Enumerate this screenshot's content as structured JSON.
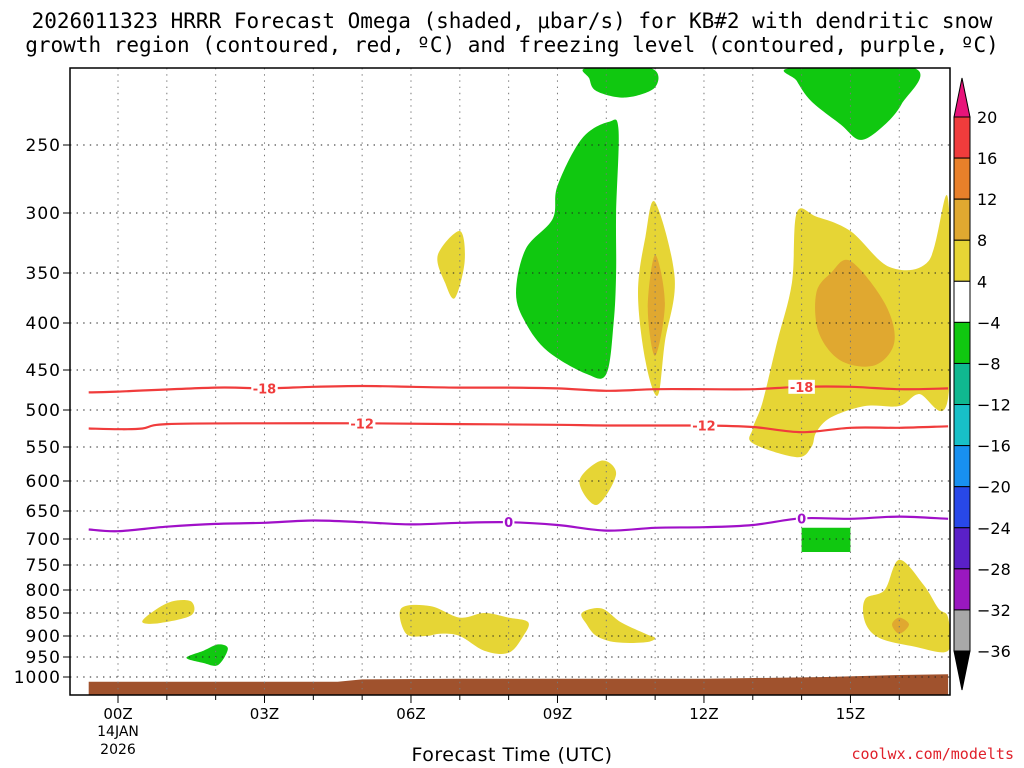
{
  "chart_data": {
    "type": "heatmap",
    "title_line1": "2026011323 HRRR Forecast Omega (shaded, μbar/s) for KB#2 with dendritic snow",
    "title_line2": "growth region (contoured, red, ºC) and freezing level (contoured, purple, ºC)",
    "xlabel": "Forecast Time (UTC)",
    "ylabel": "",
    "xlim": [
      -0.6,
      17
    ],
    "ylim_hPa": [
      1020,
      190
    ],
    "x_ticks": [
      {
        "value": 0,
        "label": "00Z"
      },
      {
        "value": 3,
        "label": "03Z"
      },
      {
        "value": 6,
        "label": "06Z"
      },
      {
        "value": 9,
        "label": "09Z"
      },
      {
        "value": 12,
        "label": "12Z"
      },
      {
        "value": 15,
        "label": "15Z"
      }
    ],
    "date_label_line1": "14JAN",
    "date_label_line2": "2026",
    "y_ticks": [
      250,
      300,
      350,
      400,
      450,
      500,
      550,
      600,
      650,
      700,
      750,
      800,
      850,
      900,
      950,
      1000
    ],
    "colorbar": {
      "labels": [
        20,
        16,
        12,
        8,
        4,
        -4,
        -8,
        -12,
        -16,
        -20,
        -24,
        -28,
        -32,
        -36
      ],
      "bins": [
        {
          "from": 20,
          "to": 99,
          "color": "#e8147a"
        },
        {
          "from": 16,
          "to": 20,
          "color": "#f03c3c"
        },
        {
          "from": 12,
          "to": 16,
          "color": "#e8802a"
        },
        {
          "from": 8,
          "to": 12,
          "color": "#e0a830"
        },
        {
          "from": 4,
          "to": 8,
          "color": "#e6d535"
        },
        {
          "from": -4,
          "to": 4,
          "color": "#ffffff"
        },
        {
          "from": -8,
          "to": -4,
          "color": "#10c810"
        },
        {
          "from": -12,
          "to": -8,
          "color": "#10b890"
        },
        {
          "from": -16,
          "to": -12,
          "color": "#18c0c8"
        },
        {
          "from": -20,
          "to": -16,
          "color": "#1890f0"
        },
        {
          "from": -24,
          "to": -20,
          "color": "#2848e8"
        },
        {
          "from": -28,
          "to": -24,
          "color": "#5a20c8"
        },
        {
          "from": -32,
          "to": -28,
          "color": "#9a18c0"
        },
        {
          "from": -36,
          "to": -32,
          "color": "#a8a8a8"
        },
        {
          "from": -99,
          "to": -36,
          "color": "#000000"
        }
      ]
    },
    "omega_regions": [
      {
        "name": "green-top-center",
        "level": -4,
        "color": "#10c810",
        "points": [
          [
            9.6,
            190
          ],
          [
            10.9,
            190
          ],
          [
            11.0,
            205
          ],
          [
            10.4,
            213
          ],
          [
            9.8,
            208
          ],
          [
            9.65,
            198
          ]
        ]
      },
      {
        "name": "green-top-right",
        "level": -4,
        "color": "#10c810",
        "points": [
          [
            13.8,
            190
          ],
          [
            16.3,
            190
          ],
          [
            16.05,
            218
          ],
          [
            15.65,
            236
          ],
          [
            15.2,
            246
          ],
          [
            14.8,
            234
          ],
          [
            14.2,
            216
          ],
          [
            13.9,
            200
          ]
        ]
      },
      {
        "name": "green-upper-mid",
        "level": -4,
        "color": "#10c810",
        "points": [
          [
            10.05,
            232
          ],
          [
            10.25,
            238
          ],
          [
            10.2,
            300
          ],
          [
            10.2,
            350
          ],
          [
            10.15,
            400
          ],
          [
            10.0,
            455
          ],
          [
            9.6,
            455
          ],
          [
            8.8,
            430
          ],
          [
            8.35,
            400
          ],
          [
            8.15,
            370
          ],
          [
            8.35,
            330
          ],
          [
            8.9,
            305
          ],
          [
            9.0,
            280
          ],
          [
            9.5,
            245
          ]
        ]
      },
      {
        "name": "yellow-small-upper",
        "level": 4,
        "color": "#e6d535",
        "points": [
          [
            7.0,
            315
          ],
          [
            7.1,
            340
          ],
          [
            6.9,
            375
          ],
          [
            6.7,
            360
          ],
          [
            6.55,
            335
          ]
        ]
      },
      {
        "name": "yellow-spike",
        "level": 4,
        "color": "#e6d535",
        "points": [
          [
            11.0,
            292
          ],
          [
            11.4,
            355
          ],
          [
            11.2,
            420
          ],
          [
            11.05,
            482
          ],
          [
            10.8,
            440
          ],
          [
            10.65,
            370
          ],
          [
            10.8,
            320
          ]
        ]
      },
      {
        "name": "orange-spike",
        "level": 8,
        "color": "#e0a830",
        "points": [
          [
            11.0,
            335
          ],
          [
            11.2,
            380
          ],
          [
            11.0,
            435
          ],
          [
            10.85,
            385
          ]
        ]
      },
      {
        "name": "yellow-right-large",
        "level": 4,
        "color": "#e6d535",
        "points": [
          [
            17.0,
            290
          ],
          [
            17.0,
            485
          ],
          [
            16.4,
            480
          ],
          [
            16.0,
            495
          ],
          [
            15.3,
            495
          ],
          [
            14.6,
            510
          ],
          [
            14.3,
            530
          ],
          [
            14.2,
            550
          ],
          [
            13.9,
            565
          ],
          [
            13.0,
            545
          ],
          [
            13.0,
            525
          ],
          [
            13.2,
            490
          ],
          [
            13.5,
            420
          ],
          [
            13.8,
            360
          ],
          [
            13.9,
            300
          ],
          [
            14.3,
            303
          ],
          [
            15.0,
            315
          ],
          [
            15.8,
            345
          ],
          [
            16.6,
            340
          ]
        ]
      },
      {
        "name": "orange-right",
        "level": 8,
        "color": "#e0a830",
        "points": [
          [
            15.0,
            340
          ],
          [
            15.7,
            380
          ],
          [
            15.9,
            420
          ],
          [
            15.5,
            445
          ],
          [
            14.8,
            440
          ],
          [
            14.35,
            410
          ],
          [
            14.3,
            370
          ],
          [
            14.6,
            350
          ]
        ]
      },
      {
        "name": "yellow-small-600",
        "level": 4,
        "color": "#e6d535",
        "points": [
          [
            9.9,
            570
          ],
          [
            10.2,
            590
          ],
          [
            9.8,
            640
          ],
          [
            9.45,
            600
          ]
        ]
      },
      {
        "name": "green-box-700",
        "level": -4,
        "color": "#10c810",
        "points": [
          [
            14.0,
            680
          ],
          [
            15.0,
            680
          ],
          [
            15.0,
            725
          ],
          [
            14.0,
            725
          ]
        ]
      },
      {
        "name": "yellow-850-left",
        "level": 4,
        "color": "#e6d535",
        "points": [
          [
            1.5,
            825
          ],
          [
            1.5,
            855
          ],
          [
            0.85,
            872
          ],
          [
            0.5,
            870
          ],
          [
            0.7,
            848
          ],
          [
            1.1,
            825
          ]
        ]
      },
      {
        "name": "yellow-880-wide",
        "level": 4,
        "color": "#e6d535",
        "points": [
          [
            5.8,
            840
          ],
          [
            6.4,
            835
          ],
          [
            7.0,
            860
          ],
          [
            7.5,
            850
          ],
          [
            8.0,
            860
          ],
          [
            8.4,
            870
          ],
          [
            8.3,
            900
          ],
          [
            8.0,
            940
          ],
          [
            7.5,
            935
          ],
          [
            7.0,
            900
          ],
          [
            6.6,
            895
          ],
          [
            6.3,
            900
          ],
          [
            5.9,
            895
          ]
        ]
      },
      {
        "name": "yellow-880-mid",
        "level": 4,
        "color": "#e6d535",
        "points": [
          [
            9.5,
            850
          ],
          [
            9.9,
            840
          ],
          [
            10.3,
            870
          ],
          [
            10.8,
            895
          ],
          [
            11.0,
            905
          ],
          [
            10.8,
            915
          ],
          [
            10.2,
            915
          ],
          [
            9.8,
            900
          ],
          [
            9.6,
            875
          ]
        ]
      },
      {
        "name": "yellow-right-lower",
        "level": 4,
        "color": "#e6d535",
        "points": [
          [
            16.0,
            740
          ],
          [
            16.5,
            790
          ],
          [
            16.8,
            840
          ],
          [
            17.0,
            860
          ],
          [
            17.0,
            935
          ],
          [
            16.3,
            925
          ],
          [
            15.6,
            905
          ],
          [
            15.3,
            870
          ],
          [
            15.3,
            820
          ],
          [
            15.7,
            800
          ]
        ]
      },
      {
        "name": "orange-dot-right",
        "level": 8,
        "color": "#e0a830",
        "points": [
          [
            16.0,
            860
          ],
          [
            16.2,
            875
          ],
          [
            16.0,
            895
          ],
          [
            15.85,
            875
          ]
        ]
      },
      {
        "name": "green-950-left",
        "level": -4,
        "color": "#10c810",
        "points": [
          [
            2.05,
            920
          ],
          [
            2.25,
            930
          ],
          [
            2.05,
            970
          ],
          [
            1.75,
            965
          ],
          [
            1.4,
            952
          ],
          [
            1.75,
            935
          ]
        ]
      }
    ],
    "ground": {
      "color": "#a0522d",
      "points": [
        [
          -0.6,
          1030
        ],
        [
          -0.6,
          1008
        ],
        [
          2,
          1008
        ],
        [
          4.5,
          1008
        ],
        [
          5.0,
          1004
        ],
        [
          7,
          1003
        ],
        [
          12,
          1003
        ],
        [
          14.5,
          1000
        ],
        [
          16,
          995
        ],
        [
          17,
          993
        ],
        [
          17,
          1030
        ]
      ]
    },
    "contours_dgz": {
      "color": "#f03c3c",
      "lines": [
        {
          "value": -18,
          "label": "-18",
          "label_at": [
            3.0,
            14.0
          ],
          "points": [
            [
              -0.6,
              478
            ],
            [
              0,
              477
            ],
            [
              2,
              472
            ],
            [
              3,
              473
            ],
            [
              4,
              471
            ],
            [
              5,
              470
            ],
            [
              6,
              471
            ],
            [
              7,
              472
            ],
            [
              8,
              472
            ],
            [
              9,
              473
            ],
            [
              10,
              476
            ],
            [
              11,
              474
            ],
            [
              12,
              474
            ],
            [
              13,
              474
            ],
            [
              14,
              471
            ],
            [
              15,
              471
            ],
            [
              16,
              474
            ],
            [
              17,
              473
            ]
          ]
        },
        {
          "value": -12,
          "label": "-12",
          "label_at": [
            5.0,
            12.0
          ],
          "points": [
            [
              -0.6,
              525
            ],
            [
              0,
              526
            ],
            [
              0.5,
              525
            ],
            [
              1,
              519
            ],
            [
              3,
              518
            ],
            [
              5,
              518
            ],
            [
              7,
              519
            ],
            [
              9,
              520
            ],
            [
              10,
              521
            ],
            [
              12,
              521
            ],
            [
              13,
              523
            ],
            [
              14,
              530
            ],
            [
              15,
              524
            ],
            [
              16,
              524
            ],
            [
              17,
              522
            ]
          ]
        }
      ]
    },
    "contours_freezing": {
      "color": "#a010c8",
      "lines": [
        {
          "value": 0,
          "label": "0",
          "label_at": [
            8.0,
            14.0
          ],
          "points": [
            [
              -0.6,
              683
            ],
            [
              0,
              686
            ],
            [
              1,
              678
            ],
            [
              2,
              673
            ],
            [
              3,
              671
            ],
            [
              4,
              667
            ],
            [
              5,
              670
            ],
            [
              6,
              674
            ],
            [
              7,
              671
            ],
            [
              8,
              670
            ],
            [
              9,
              675
            ],
            [
              10,
              685
            ],
            [
              11,
              680
            ],
            [
              12,
              679
            ],
            [
              13,
              675
            ],
            [
              14,
              663
            ],
            [
              15,
              664
            ],
            [
              16,
              660
            ],
            [
              17,
              664
            ]
          ]
        }
      ]
    },
    "credit": "coolwx.com/modelts"
  }
}
